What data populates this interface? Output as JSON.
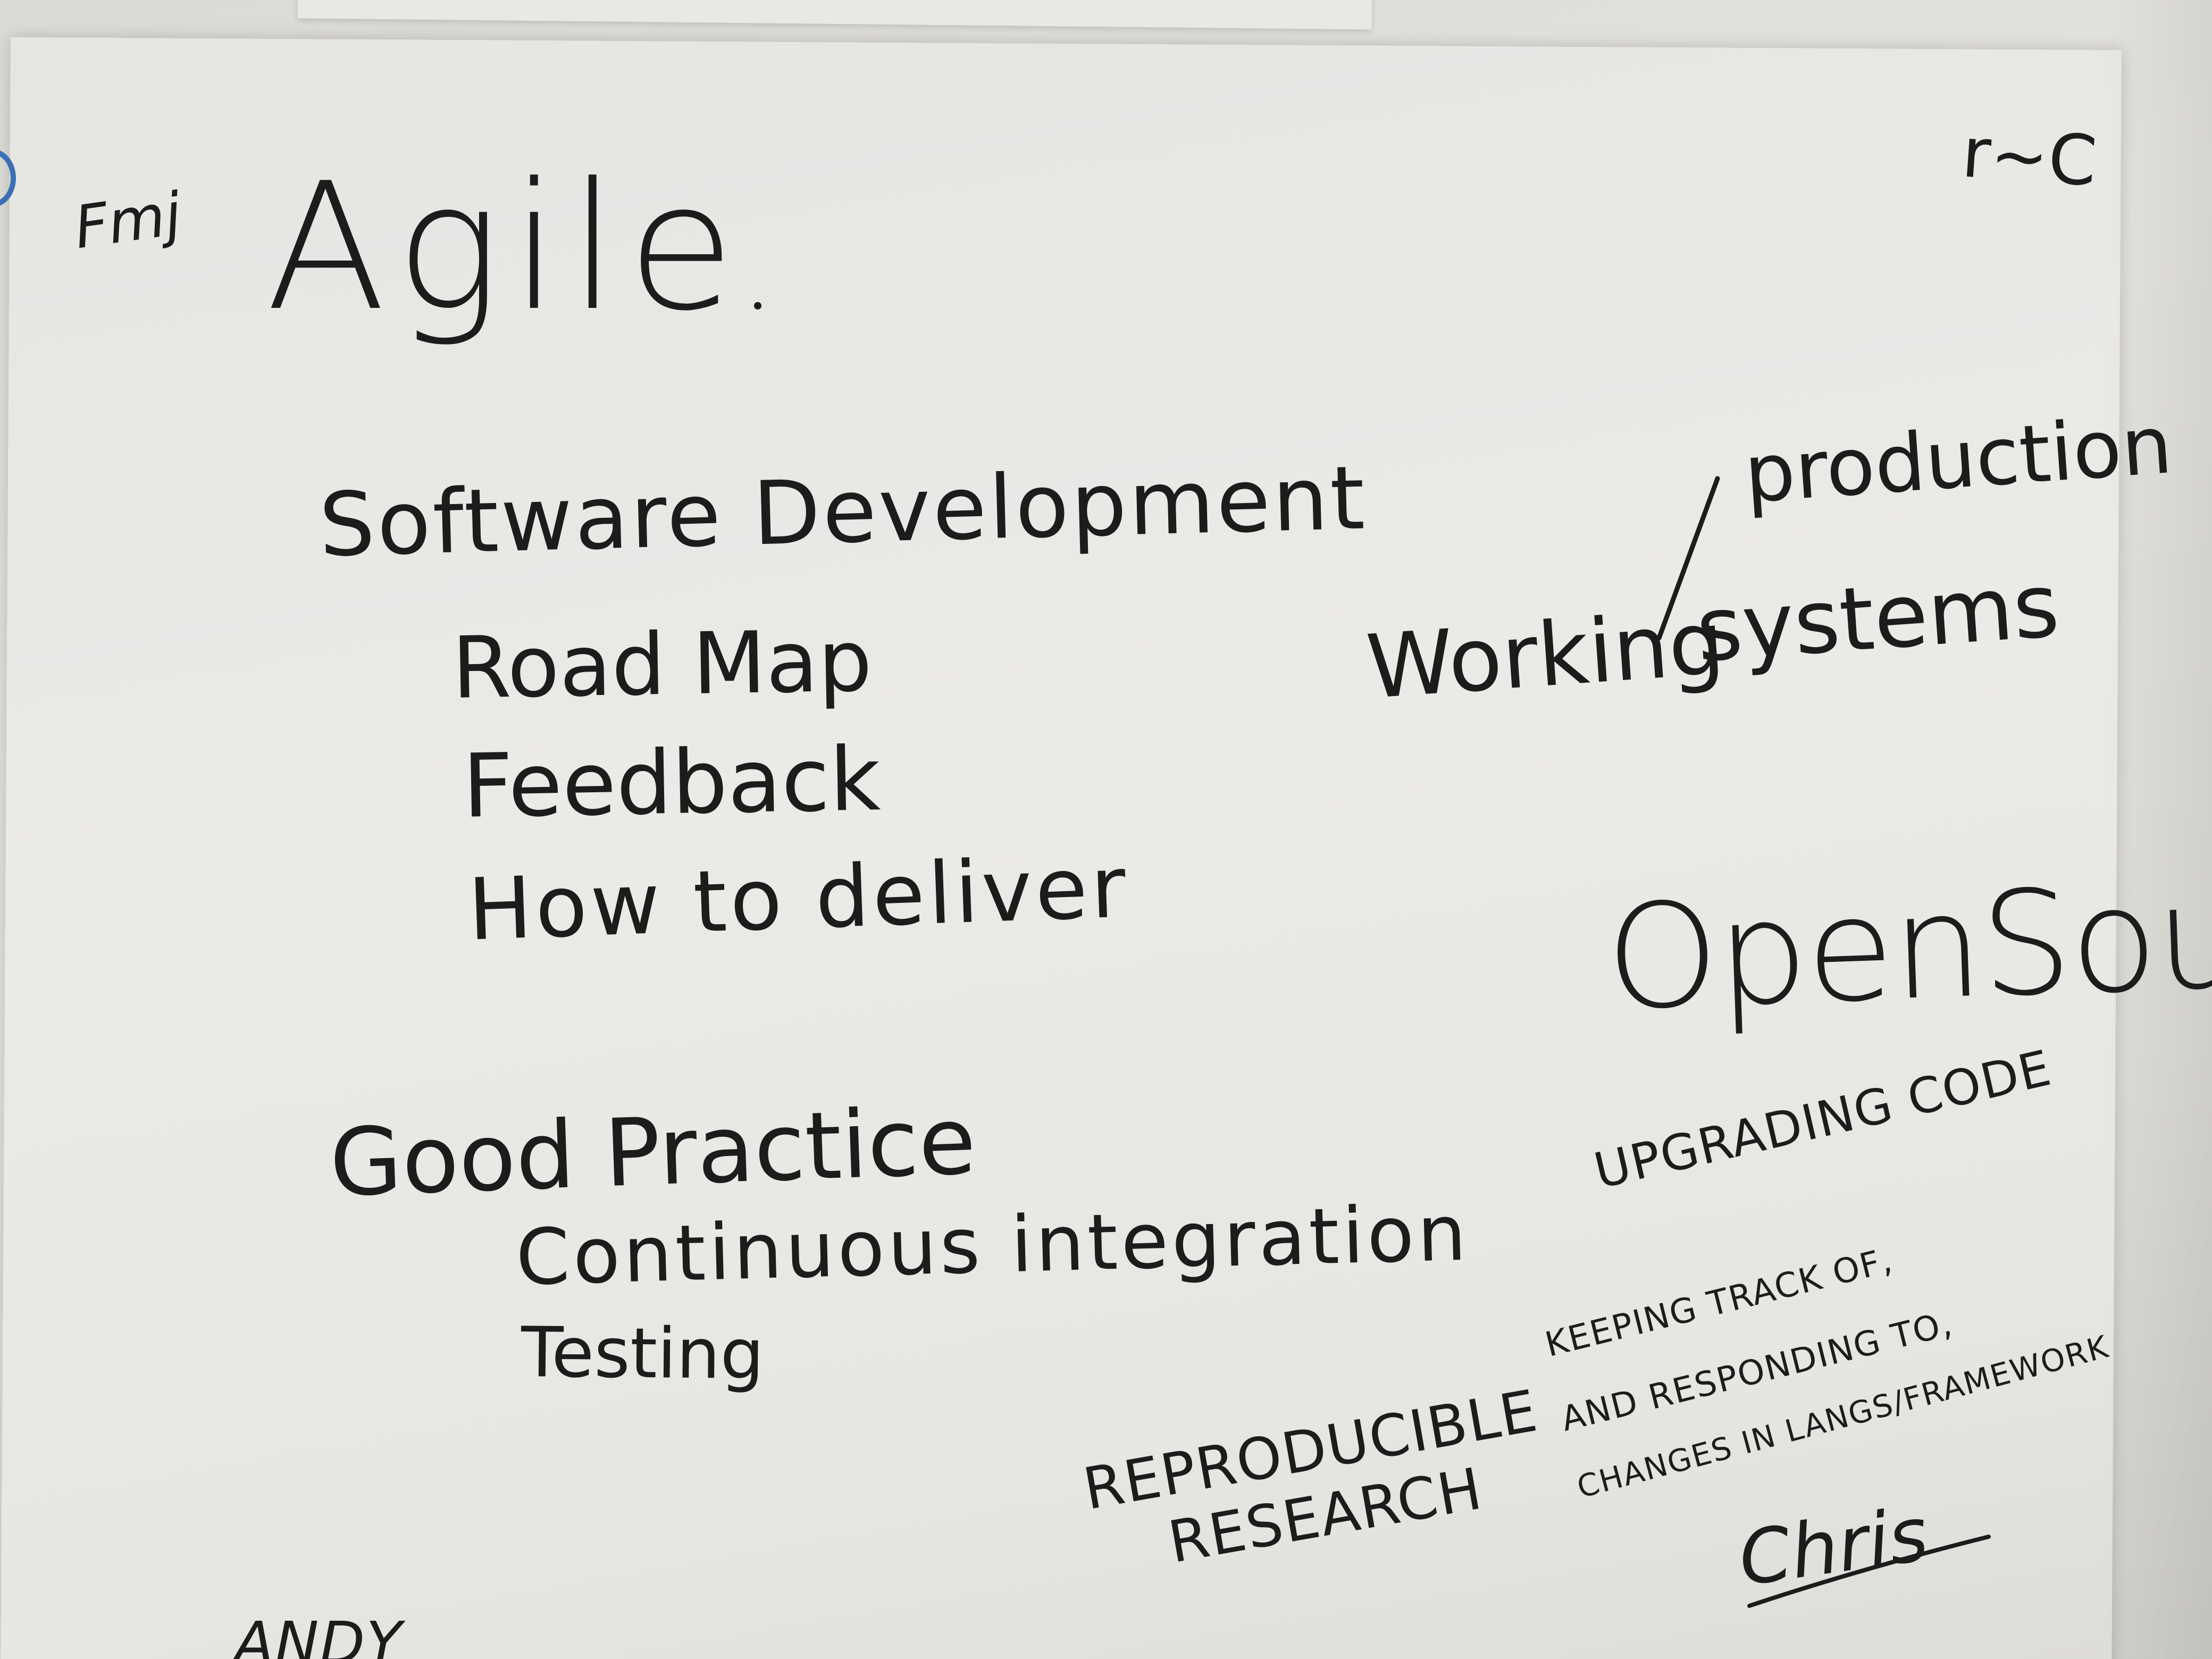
{
  "title": "Agile",
  "left_column": {
    "heading": "Software Development",
    "items": [
      "Road Map",
      "Feedback",
      "How to deliver"
    ]
  },
  "right_top": {
    "prefix": "Working",
    "line1": "production",
    "line2": "systems"
  },
  "open_source": "OpenSource",
  "good_practice": {
    "heading": "Good Practice",
    "items": [
      "Continuous integration",
      "Testing"
    ]
  },
  "upgrading": "UPGRADING CODE",
  "keeping_track": [
    "KEEPING TRACK OF,",
    "AND RESPONDING TO,",
    "CHANGES IN LANGS/FRAMEWORK"
  ],
  "reproducible": [
    "REPRODUCIBLE",
    "RESEARCH"
  ],
  "signature_right": "Chris",
  "signature_bottom": "ANDY",
  "corner_mark_left": "Fmj",
  "corner_mark_right": "r~C",
  "colors": {
    "ink": "#1c1c1c",
    "paper": "#e8e7e4",
    "blue_mark": "#3a6fb5"
  }
}
